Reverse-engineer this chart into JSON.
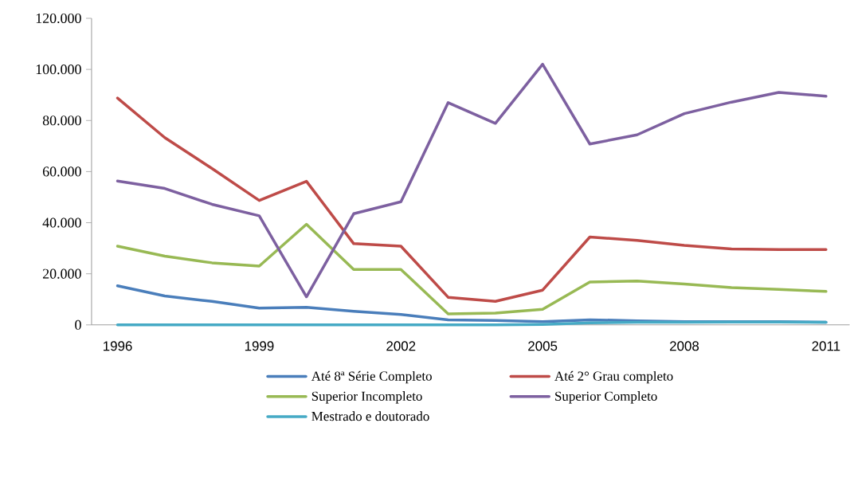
{
  "chart_data": {
    "type": "line",
    "x": [
      1996,
      1997,
      1998,
      1999,
      2000,
      2001,
      2002,
      2003,
      2004,
      2005,
      2006,
      2007,
      2008,
      2009,
      2010,
      2011
    ],
    "series": [
      {
        "name": "Até 8ª Série Completo",
        "color": "#4a7ebb",
        "values": [
          15300,
          11300,
          9200,
          6600,
          6900,
          5300,
          4100,
          2000,
          1700,
          1300,
          2000,
          1600,
          1300,
          1300,
          1300,
          1000
        ]
      },
      {
        "name": "Até 2° Grau completo",
        "color": "#be4b48",
        "values": [
          88800,
          73300,
          61200,
          48700,
          56200,
          31800,
          30800,
          10800,
          9200,
          13600,
          34400,
          33100,
          31100,
          29700,
          29500,
          29500
        ]
      },
      {
        "name": "Superior Incompleto",
        "color": "#98b954",
        "values": [
          30800,
          26900,
          24300,
          23000,
          39400,
          21700,
          21700,
          4300,
          4600,
          6100,
          16800,
          17200,
          16000,
          14600,
          13900,
          13100
        ]
      },
      {
        "name": "Superior Completo",
        "color": "#7d60a0",
        "values": [
          56300,
          53400,
          47200,
          42700,
          11000,
          43500,
          48200,
          87000,
          78900,
          102000,
          70800,
          74400,
          82700,
          87200,
          91000,
          89500
        ]
      },
      {
        "name": "Mestrado e doutorado",
        "color": "#46aac5",
        "values": [
          0,
          0,
          0,
          0,
          0,
          0,
          0,
          0,
          0,
          200,
          800,
          1000,
          1000,
          1100,
          1100,
          1000
        ]
      }
    ],
    "xlim": [
      1995.45,
      2011.5
    ],
    "xticks": [
      1996,
      1999,
      2002,
      2005,
      2008,
      2011
    ],
    "ylim": [
      0,
      120000
    ],
    "yticks": [
      {
        "value": 0,
        "label": "0"
      },
      {
        "value": 20000,
        "label": "20.000"
      },
      {
        "value": 40000,
        "label": "40.000"
      },
      {
        "value": 60000,
        "label": "60.000"
      },
      {
        "value": 80000,
        "label": "80.000"
      },
      {
        "value": 100000,
        "label": "100.000"
      },
      {
        "value": 120000,
        "label": "120.000"
      }
    ],
    "grid": false,
    "legend": "bottom",
    "marker": "none",
    "line_style": "solid"
  }
}
